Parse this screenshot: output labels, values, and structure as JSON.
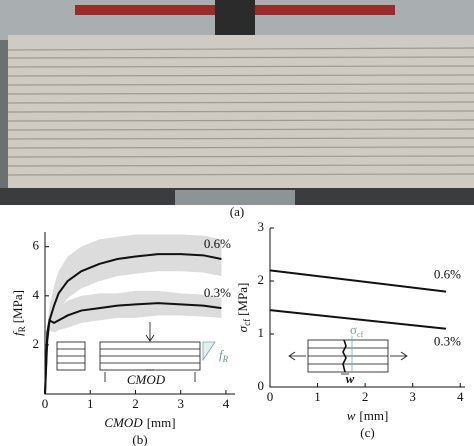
{
  "photo_caption": "(a)",
  "chart_data": [
    {
      "type": "line",
      "caption": "(b)",
      "xlabel_symbol": "CMOD",
      "xlabel_unit": "[mm]",
      "ylabel_symbol": "f",
      "ylabel_subscript": "R",
      "ylabel_unit": "[MPa]",
      "xlim": [
        0,
        4.2
      ],
      "xticks": [
        0,
        1,
        2,
        3,
        4
      ],
      "ylim": [
        0,
        6.6
      ],
      "yticks": [
        2,
        4,
        6
      ],
      "x": [
        0,
        0.05,
        0.1,
        0.2,
        0.3,
        0.5,
        0.8,
        1.2,
        1.6,
        2,
        2.5,
        3,
        3.5,
        3.9
      ],
      "series": [
        {
          "name": "0.6%",
          "color": "#111111",
          "values": [
            0,
            2.2,
            3.0,
            3.6,
            4.1,
            4.6,
            5.0,
            5.3,
            5.5,
            5.6,
            5.7,
            5.7,
            5.65,
            5.5
          ],
          "band_color": "#dcdcdc",
          "upper": [
            0,
            2.6,
            3.6,
            4.4,
            5.0,
            5.6,
            6.0,
            6.3,
            6.4,
            6.5,
            6.5,
            6.5,
            6.45,
            6.3
          ],
          "lower": [
            0,
            1.8,
            2.5,
            3.0,
            3.4,
            3.9,
            4.3,
            4.6,
            4.8,
            4.9,
            5.0,
            5.0,
            4.95,
            4.8
          ]
        },
        {
          "name": "0.3%",
          "color": "#111111",
          "values": [
            0,
            2.5,
            3.0,
            2.9,
            3.0,
            3.2,
            3.4,
            3.5,
            3.6,
            3.65,
            3.7,
            3.65,
            3.6,
            3.5
          ],
          "band_color": "#dcdcdc",
          "upper": [
            0,
            2.8,
            3.4,
            3.3,
            3.5,
            3.8,
            4.0,
            4.1,
            4.1,
            4.2,
            4.2,
            4.1,
            4.05,
            3.9
          ],
          "lower": [
            0,
            2.2,
            2.6,
            2.5,
            2.6,
            2.7,
            2.9,
            3.0,
            3.1,
            3.1,
            3.2,
            3.2,
            3.15,
            3.1
          ]
        }
      ],
      "inset_texts": {
        "cmod": "CMOD",
        "f": "f",
        "f_sub": "R"
      }
    },
    {
      "type": "line",
      "caption": "(c)",
      "xlabel_symbol": "w",
      "xlabel_unit": "[mm]",
      "ylabel_symbol": "σ",
      "ylabel_subscript": "cf",
      "ylabel_unit": "[MPa]",
      "xlim": [
        0,
        4.1
      ],
      "xticks": [
        0,
        1,
        2,
        3,
        4
      ],
      "ylim": [
        0,
        3
      ],
      "yticks": [
        0,
        1,
        2,
        3
      ],
      "x": [
        0,
        3.7
      ],
      "series": [
        {
          "name": "0.6%",
          "color": "#111111",
          "values": [
            2.2,
            1.8
          ]
        },
        {
          "name": "0.3%",
          "color": "#111111",
          "values": [
            1.45,
            1.1
          ]
        }
      ],
      "inset_texts": {
        "sigma": "σ",
        "sigma_sub": "cf",
        "w": "w"
      }
    }
  ]
}
